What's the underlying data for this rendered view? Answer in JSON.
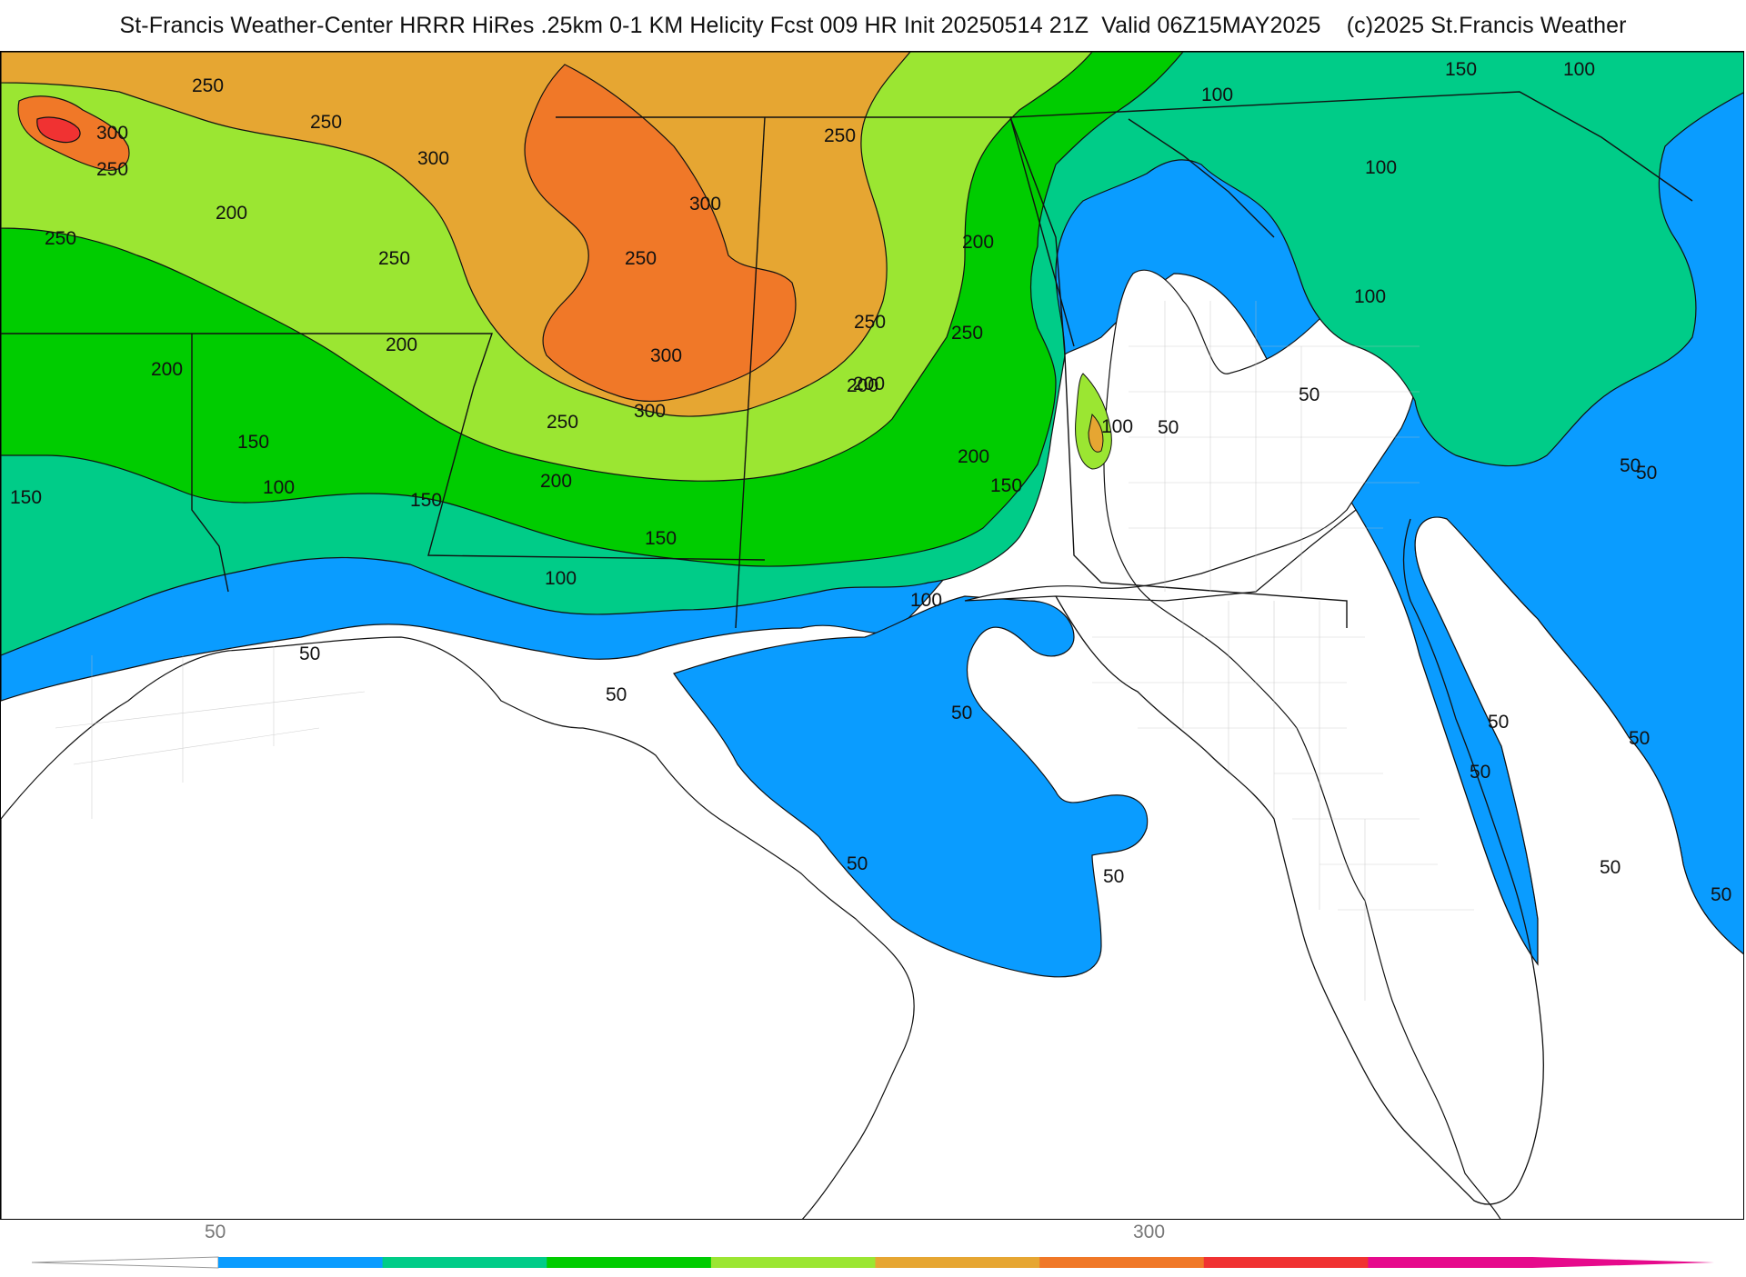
{
  "title": "St-Francis Weather-Center HRRR HiRes .25km 0-1 KM Helicity Fcst 009 HR Init 20250514 21Z  Valid 06Z15MAY2025    (c)2025 St.Francis Weather",
  "legend": {
    "tick_labels": [
      "50",
      "300"
    ],
    "colors": [
      "#0a9cff",
      "#00cc88",
      "#00cc00",
      "#9be632",
      "#e6a632",
      "#f07828",
      "#f03232",
      "#e60a8c"
    ]
  },
  "contour_labels": [
    "250",
    "300",
    "250",
    "250",
    "300",
    "250",
    "200",
    "250",
    "250",
    "200",
    "200",
    "300",
    "250",
    "300",
    "300",
    "250",
    "250",
    "200",
    "250",
    "200",
    "150",
    "150",
    "100",
    "150",
    "150",
    "200",
    "200",
    "200",
    "150",
    "100",
    "100",
    "50",
    "100",
    "100",
    "100",
    "150",
    "100",
    "50",
    "100",
    "50",
    "50",
    "50",
    "50",
    "50",
    "50",
    "50",
    "50",
    "50",
    "50",
    "50",
    "50"
  ],
  "colors": {
    "land_background": "#ffffff",
    "county_lines": "#bdbdbd",
    "state_lines": "#111111"
  }
}
